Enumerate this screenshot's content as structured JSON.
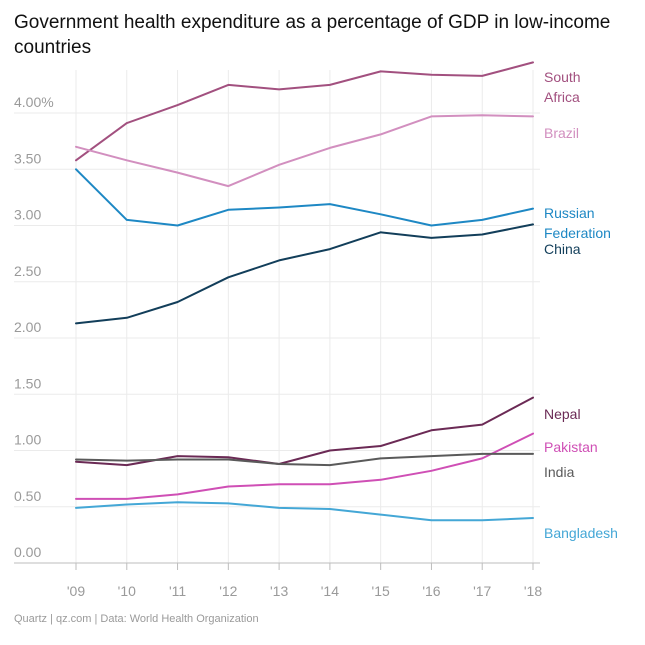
{
  "chart_data": {
    "type": "line",
    "title": "Government health expenditure as a percentage of GDP in low-income countries",
    "xlabel": "",
    "ylabel": "",
    "x": [
      "'09",
      "'10",
      "'11",
      "'12",
      "'13",
      "'14",
      "'15",
      "'16",
      "'17",
      "'18"
    ],
    "y_ticks": [
      "0.00",
      "0.50",
      "1.00",
      "1.50",
      "2.00",
      "2.50",
      "3.00",
      "3.50",
      "4.00%"
    ],
    "ylim": [
      0,
      4.4
    ],
    "grid": true,
    "series": [
      {
        "name": "South Africa",
        "label_lines": [
          "South",
          "Africa"
        ],
        "color": "#a2507f",
        "values": [
          3.58,
          3.91,
          4.07,
          4.25,
          4.21,
          4.25,
          4.37,
          4.34,
          4.33,
          4.45
        ]
      },
      {
        "name": "Brazil",
        "label_lines": [
          "Brazil"
        ],
        "color": "#d28fbf",
        "values": [
          3.7,
          3.58,
          3.47,
          3.35,
          3.54,
          3.69,
          3.81,
          3.97,
          3.98,
          3.97
        ]
      },
      {
        "name": "Russian Federation",
        "label_lines": [
          "Russian",
          "Federation"
        ],
        "color": "#1e88c4",
        "values": [
          3.5,
          3.05,
          3.0,
          3.14,
          3.16,
          3.19,
          3.1,
          3.0,
          3.05,
          3.15
        ]
      },
      {
        "name": "China",
        "label_lines": [
          "China"
        ],
        "color": "#123e5a",
        "values": [
          2.13,
          2.18,
          2.32,
          2.54,
          2.69,
          2.79,
          2.94,
          2.89,
          2.92,
          3.01
        ]
      },
      {
        "name": "Nepal",
        "label_lines": [
          "Nepal"
        ],
        "color": "#6b2a55",
        "values": [
          0.9,
          0.87,
          0.95,
          0.94,
          0.88,
          1.0,
          1.04,
          1.18,
          1.23,
          1.47
        ]
      },
      {
        "name": "Pakistan",
        "label_lines": [
          "Pakistan"
        ],
        "color": "#cf4fb5",
        "values": [
          0.57,
          0.57,
          0.61,
          0.68,
          0.7,
          0.7,
          0.74,
          0.82,
          0.93,
          1.15
        ]
      },
      {
        "name": "India",
        "label_lines": [
          "India"
        ],
        "color": "#5a5a5a",
        "values": [
          0.92,
          0.91,
          0.92,
          0.92,
          0.88,
          0.87,
          0.93,
          0.95,
          0.97,
          0.97
        ]
      },
      {
        "name": "Bangladesh",
        "label_lines": [
          "Bangladesh"
        ],
        "color": "#44a7d6",
        "values": [
          0.49,
          0.52,
          0.54,
          0.53,
          0.49,
          0.48,
          0.43,
          0.38,
          0.38,
          0.4
        ]
      }
    ]
  },
  "footer": "Quartz | qz.com | Data: World Health Organization"
}
